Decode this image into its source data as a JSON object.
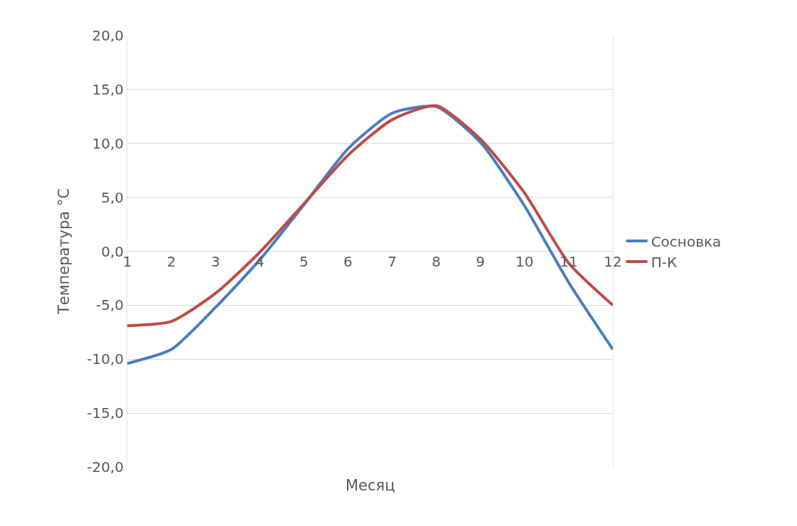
{
  "chart_data": {
    "type": "line",
    "xlabel": "Месяц",
    "ylabel": "Температура °С",
    "x": [
      1,
      2,
      3,
      4,
      5,
      6,
      7,
      8,
      9,
      10,
      11,
      12
    ],
    "series": [
      {
        "name": "Сосновка",
        "color": "#4a7ebb",
        "values": [
          -10.4,
          -9.1,
          -5.2,
          -0.8,
          4.3,
          9.5,
          12.8,
          13.4,
          10.1,
          4.2,
          -2.9,
          -9.1
        ]
      },
      {
        "name": "П-К",
        "color": "#be4b48",
        "values": [
          -6.9,
          -6.5,
          -3.9,
          -0.1,
          4.4,
          8.9,
          12.2,
          13.5,
          10.4,
          5.4,
          -1.1,
          -5.0
        ]
      }
    ],
    "xlim": [
      1,
      12
    ],
    "xticks": [
      1,
      2,
      3,
      4,
      5,
      6,
      7,
      8,
      9,
      10,
      11,
      12
    ],
    "ylim": [
      -20,
      20
    ],
    "yticks": [
      {
        "value": -20,
        "label": "-20,0"
      },
      {
        "value": -15,
        "label": "-15,0"
      },
      {
        "value": -10,
        "label": "-10,0"
      },
      {
        "value": -5,
        "label": "-5,0"
      },
      {
        "value": 0,
        "label": "0,0"
      },
      {
        "value": 5,
        "label": "5,0"
      },
      {
        "value": 10,
        "label": "10,0"
      },
      {
        "value": 15,
        "label": "15,0"
      },
      {
        "value": 20,
        "label": "20,0"
      }
    ],
    "grid": "y",
    "legend": "right",
    "marker": "none",
    "line_style": "solid"
  }
}
